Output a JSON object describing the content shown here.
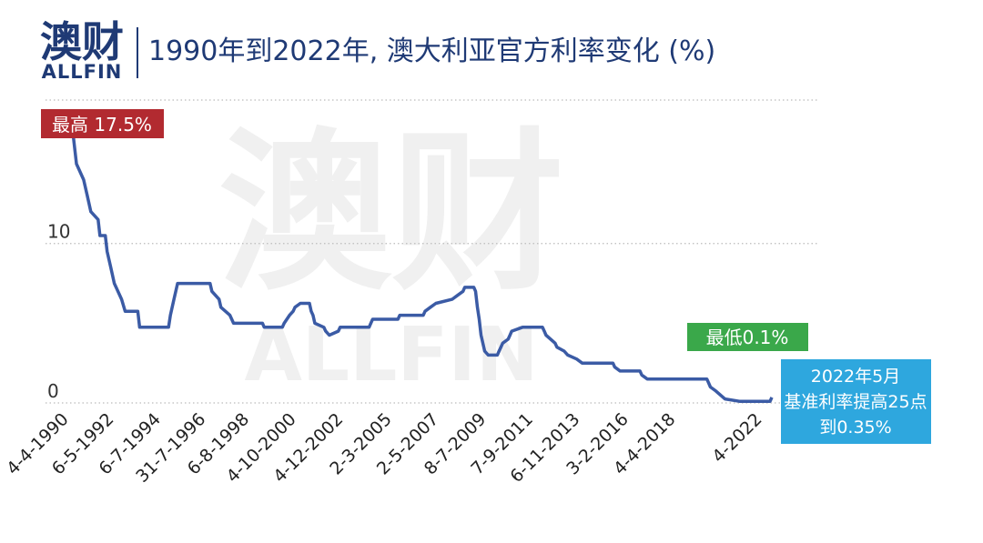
{
  "logo": {
    "name": "澳财",
    "brand": "ALLFIN"
  },
  "chart_data": {
    "type": "line",
    "title": "1990年到2022年, 澳大利亚官方利率变化 (%)",
    "x": [
      "1990-01",
      "1990-02",
      "1990-04",
      "1990-08",
      "1990-10",
      "1990-12",
      "1991-04",
      "1991-05",
      "1991-08",
      "1991-09",
      "1991-11",
      "1992-01",
      "1992-05",
      "1992-07",
      "1993-02",
      "1993-03",
      "1994-07",
      "1994-08",
      "1994-10",
      "1994-12",
      "1996-06",
      "1996-07",
      "1996-11",
      "1996-12",
      "1997-05",
      "1997-07",
      "1998-11",
      "1998-12",
      "1999-10",
      "1999-11",
      "2000-02",
      "2000-04",
      "2000-05",
      "2000-08",
      "2001-01",
      "2001-02",
      "2001-03",
      "2001-04",
      "2001-09",
      "2001-10",
      "2001-12",
      "2002-05",
      "2002-06",
      "2003-10",
      "2003-11",
      "2003-12",
      "2005-02",
      "2005-03",
      "2006-04",
      "2006-05",
      "2006-08",
      "2006-11",
      "2007-08",
      "2007-11",
      "2008-02",
      "2008-03",
      "2008-08",
      "2008-09",
      "2008-10",
      "2008-11",
      "2008-12",
      "2009-02",
      "2009-04",
      "2009-09",
      "2009-10",
      "2009-11",
      "2009-12",
      "2010-03",
      "2010-04",
      "2010-05",
      "2010-11",
      "2011-10",
      "2011-11",
      "2011-12",
      "2012-05",
      "2012-06",
      "2012-10",
      "2012-12",
      "2013-05",
      "2013-08",
      "2015-01",
      "2015-02",
      "2015-05",
      "2016-04",
      "2016-05",
      "2016-08",
      "2019-05",
      "2019-06",
      "2019-07",
      "2019-10",
      "2020-03",
      "2020-11",
      "2022-04",
      "2022-05"
    ],
    "series": [
      {
        "color": "#3b5ba5",
        "values": [
          17.5,
          17,
          15,
          14,
          13,
          12,
          11.5,
          10.5,
          10.5,
          9.5,
          8.5,
          7.5,
          6.5,
          5.75,
          5.75,
          4.75,
          4.75,
          5.5,
          6.5,
          7.5,
          7.5,
          7,
          6.5,
          6,
          5.5,
          5,
          5,
          4.75,
          4.75,
          5,
          5.5,
          5.75,
          6,
          6.25,
          6.25,
          5.75,
          5.5,
          5,
          4.75,
          4.5,
          4.25,
          4.5,
          4.75,
          4.75,
          5,
          5.25,
          5.25,
          5.5,
          5.5,
          5.75,
          6,
          6.25,
          6.5,
          6.75,
          7,
          7.25,
          7.25,
          7,
          6,
          5.25,
          4.25,
          3.25,
          3,
          3,
          3.25,
          3.5,
          3.75,
          4,
          4.25,
          4.5,
          4.75,
          4.75,
          4.5,
          4.25,
          3.75,
          3.5,
          3.25,
          3,
          2.75,
          2.5,
          2.5,
          2.25,
          2,
          2,
          1.75,
          1.5,
          1.5,
          1.25,
          1,
          0.75,
          0.25,
          0.1,
          0.1,
          0.35
        ]
      }
    ],
    "xlim": [
      "1990-01",
      "2022-06"
    ],
    "xticks": [
      "4-4-1990",
      "6-5-1992",
      "6-7-1994",
      "31-7-1996",
      "6-8-1998",
      "4-10-2000",
      "4-12-2002",
      "2-3-2005",
      "2-5-2007",
      "8-7-2009",
      "7-9-2011",
      "6-11-2013",
      "3-2-2016",
      "4-4-2018",
      "4-2022"
    ],
    "ylim": [
      0,
      19
    ],
    "yticks": [
      0,
      10
    ],
    "grid": true,
    "annotations": {
      "high": "最高 17.5%",
      "low": "最低0.1%",
      "latest": [
        "2022年5月",
        "基准利率提高25点",
        "到0.35%"
      ]
    }
  }
}
